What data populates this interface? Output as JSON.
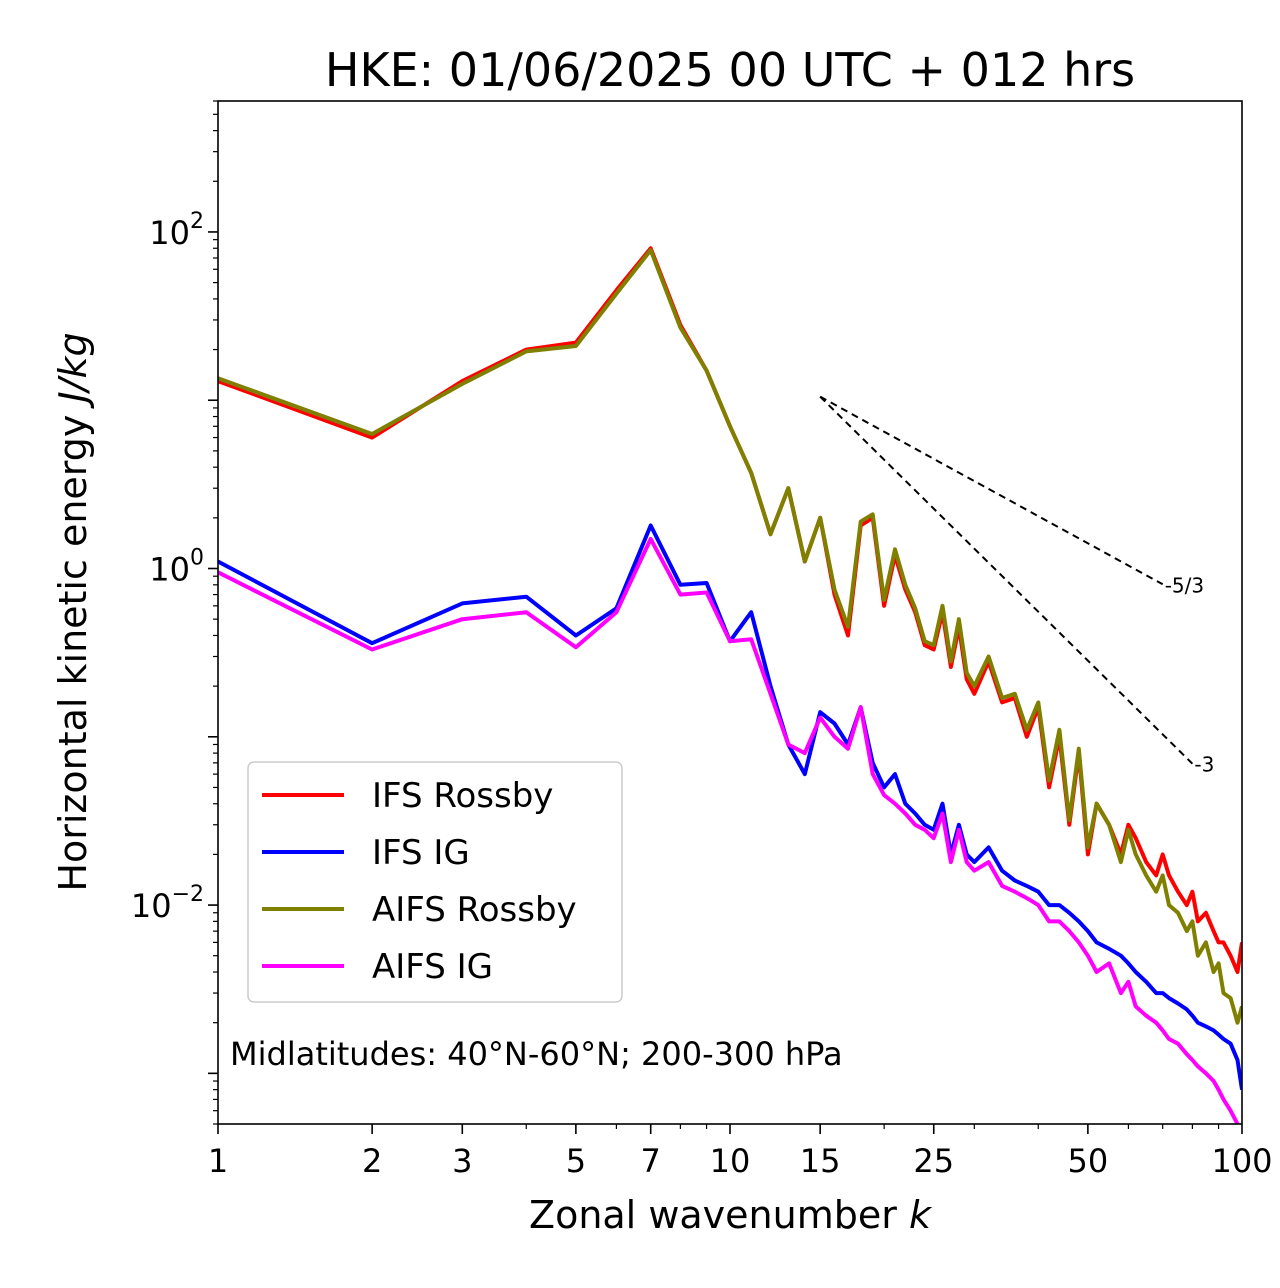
{
  "chart_data": {
    "type": "line",
    "title": "HKE: 01/06/2025 00 UTC + 012 hrs",
    "xlabel": "Zonal wavenumber",
    "xlabel_var": "k",
    "ylabel": "Horizontal kinetic energy",
    "ylabel_unit": "J/kg",
    "xscale": "log",
    "yscale": "log",
    "xlim": [
      1,
      100
    ],
    "ylim": [
      0.0005,
      600
    ],
    "x_ticks": [
      {
        "value": 1,
        "label": "1"
      },
      {
        "value": 2,
        "label": "2"
      },
      {
        "value": 3,
        "label": "3"
      },
      {
        "value": 5,
        "label": "5"
      },
      {
        "value": 7,
        "label": "7"
      },
      {
        "value": 10,
        "label": "10"
      },
      {
        "value": 15,
        "label": "15"
      },
      {
        "value": 25,
        "label": "25"
      },
      {
        "value": 50,
        "label": "50"
      },
      {
        "value": 100,
        "label": "100"
      }
    ],
    "y_ticks": [
      {
        "value": 100,
        "base": "10",
        "exp": "2"
      },
      {
        "value": 1,
        "base": "10",
        "exp": "0"
      },
      {
        "value": 0.01,
        "base": "10",
        "exp": "−2"
      }
    ],
    "grid": false,
    "legend_position": "lower-left",
    "annotation": "Midlatitudes: 40°N-60°N; 200-300 hPa",
    "reference_slopes": [
      {
        "label": "-5/3",
        "slope": -1.6667,
        "x_start": 15,
        "y_start": 10.5,
        "x_end": 70
      },
      {
        "label": "-3",
        "slope": -3,
        "x_start": 15,
        "y_start": 10.5,
        "x_end": 80
      }
    ],
    "series": [
      {
        "name": "IFS Rossby",
        "color": "#ff0000",
        "x": [
          1,
          2,
          3,
          4,
          5,
          6,
          7,
          8,
          9,
          10,
          11,
          12,
          13,
          14,
          15,
          16,
          17,
          18,
          19,
          20,
          21,
          22,
          23,
          24,
          25,
          26,
          27,
          28,
          29,
          30,
          32,
          34,
          36,
          38,
          40,
          42,
          44,
          46,
          48,
          50,
          52,
          55,
          58,
          60,
          62,
          65,
          68,
          70,
          72,
          75,
          78,
          80,
          82,
          85,
          88,
          90,
          92,
          95,
          98,
          100
        ],
        "y": [
          13,
          6,
          13,
          20,
          22,
          45,
          80,
          28,
          15,
          7,
          3.7,
          1.6,
          3.0,
          1.1,
          2.0,
          0.7,
          0.4,
          1.8,
          2.0,
          0.6,
          1.2,
          0.75,
          0.55,
          0.35,
          0.33,
          0.55,
          0.26,
          0.45,
          0.22,
          0.18,
          0.28,
          0.16,
          0.17,
          0.1,
          0.15,
          0.05,
          0.1,
          0.03,
          0.08,
          0.02,
          0.04,
          0.03,
          0.02,
          0.03,
          0.025,
          0.018,
          0.015,
          0.02,
          0.015,
          0.012,
          0.01,
          0.012,
          0.008,
          0.009,
          0.007,
          0.006,
          0.006,
          0.005,
          0.004,
          0.006
        ]
      },
      {
        "name": "IFS IG",
        "color": "#0000ff",
        "x": [
          1,
          2,
          3,
          4,
          5,
          6,
          7,
          8,
          9,
          10,
          11,
          12,
          13,
          14,
          15,
          16,
          17,
          18,
          19,
          20,
          21,
          22,
          23,
          24,
          25,
          26,
          27,
          28,
          29,
          30,
          32,
          34,
          36,
          38,
          40,
          42,
          44,
          46,
          48,
          50,
          52,
          55,
          58,
          60,
          62,
          65,
          68,
          70,
          72,
          75,
          78,
          80,
          82,
          85,
          88,
          90,
          92,
          95,
          98,
          100
        ],
        "y": [
          1.1,
          0.36,
          0.62,
          0.68,
          0.4,
          0.58,
          1.8,
          0.8,
          0.82,
          0.37,
          0.55,
          0.2,
          0.09,
          0.06,
          0.14,
          0.12,
          0.09,
          0.15,
          0.07,
          0.05,
          0.06,
          0.04,
          0.035,
          0.03,
          0.028,
          0.04,
          0.02,
          0.03,
          0.02,
          0.018,
          0.022,
          0.016,
          0.014,
          0.013,
          0.012,
          0.01,
          0.01,
          0.009,
          0.008,
          0.007,
          0.006,
          0.0055,
          0.005,
          0.0045,
          0.004,
          0.0035,
          0.003,
          0.003,
          0.0028,
          0.0026,
          0.0024,
          0.0022,
          0.002,
          0.0019,
          0.0018,
          0.0017,
          0.0016,
          0.0015,
          0.0012,
          0.0008
        ]
      },
      {
        "name": "AIFS Rossby",
        "color": "#808000",
        "x": [
          1,
          2,
          3,
          4,
          5,
          6,
          7,
          8,
          9,
          10,
          11,
          12,
          13,
          14,
          15,
          16,
          17,
          18,
          19,
          20,
          21,
          22,
          23,
          24,
          25,
          26,
          27,
          28,
          29,
          30,
          32,
          34,
          36,
          38,
          40,
          42,
          44,
          46,
          48,
          50,
          52,
          55,
          58,
          60,
          62,
          65,
          68,
          70,
          72,
          75,
          78,
          80,
          82,
          85,
          88,
          90,
          92,
          95,
          98,
          100
        ],
        "y": [
          13.5,
          6.3,
          12.5,
          19.5,
          21,
          43,
          78,
          27,
          15,
          7,
          3.7,
          1.6,
          3.0,
          1.1,
          2.0,
          0.75,
          0.45,
          1.9,
          2.1,
          0.65,
          1.3,
          0.8,
          0.58,
          0.37,
          0.35,
          0.6,
          0.28,
          0.5,
          0.24,
          0.2,
          0.3,
          0.17,
          0.18,
          0.11,
          0.16,
          0.055,
          0.11,
          0.032,
          0.085,
          0.022,
          0.04,
          0.03,
          0.018,
          0.028,
          0.02,
          0.015,
          0.012,
          0.015,
          0.01,
          0.009,
          0.007,
          0.008,
          0.005,
          0.006,
          0.004,
          0.0045,
          0.003,
          0.0028,
          0.002,
          0.0025
        ]
      },
      {
        "name": "AIFS IG",
        "color": "#ff00ff",
        "x": [
          1,
          2,
          3,
          4,
          5,
          6,
          7,
          8,
          9,
          10,
          11,
          12,
          13,
          14,
          15,
          16,
          17,
          18,
          19,
          20,
          21,
          22,
          23,
          24,
          25,
          26,
          27,
          28,
          29,
          30,
          32,
          34,
          36,
          38,
          40,
          42,
          44,
          46,
          48,
          50,
          52,
          55,
          58,
          60,
          62,
          65,
          68,
          70,
          72,
          75,
          78,
          80,
          82,
          85,
          88,
          90,
          92,
          95,
          98,
          100
        ],
        "y": [
          0.95,
          0.33,
          0.5,
          0.55,
          0.34,
          0.55,
          1.5,
          0.7,
          0.72,
          0.37,
          0.38,
          0.18,
          0.09,
          0.08,
          0.13,
          0.1,
          0.085,
          0.15,
          0.06,
          0.045,
          0.04,
          0.035,
          0.03,
          0.028,
          0.025,
          0.035,
          0.018,
          0.028,
          0.018,
          0.016,
          0.018,
          0.013,
          0.012,
          0.011,
          0.01,
          0.008,
          0.008,
          0.007,
          0.006,
          0.005,
          0.004,
          0.0045,
          0.003,
          0.0035,
          0.0025,
          0.0022,
          0.002,
          0.0018,
          0.0016,
          0.0015,
          0.0013,
          0.0012,
          0.0011,
          0.001,
          0.0009,
          0.0008,
          0.0007,
          0.0006,
          0.0005,
          0.0004
        ]
      }
    ]
  }
}
